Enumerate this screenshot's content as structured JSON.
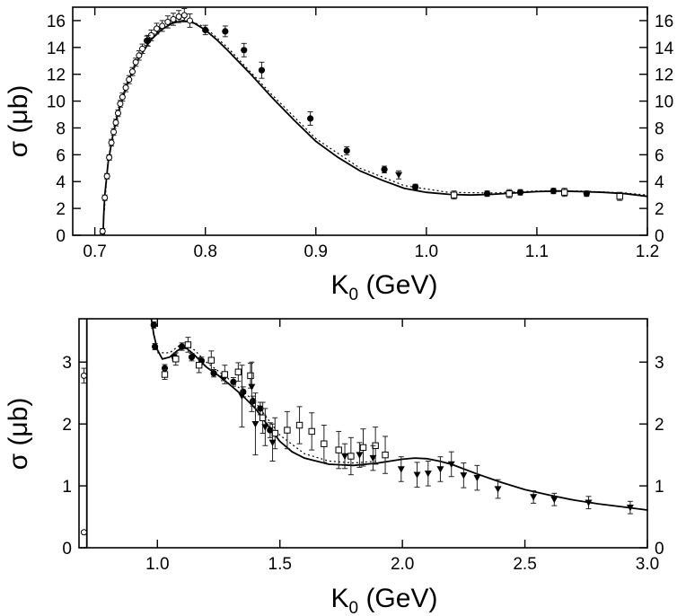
{
  "chart_data": [
    {
      "type": "scatter",
      "panel": "top",
      "xlabel": "K",
      "xlabel_sub": "0",
      "xlabel_unit": " (GeV)",
      "ylabel": "σ (μb)",
      "xlim": [
        0.68,
        1.2
      ],
      "ylim": [
        0,
        17
      ],
      "xticks": [
        0.7,
        0.8,
        0.9,
        1.0,
        1.1,
        1.2
      ],
      "xtick_labels": [
        "0.7",
        "0.8",
        "0.9",
        "1.0",
        "1.1",
        "1.2"
      ],
      "yticks": [
        0,
        2,
        4,
        6,
        8,
        10,
        12,
        14,
        16
      ],
      "ytick_labels": [
        "0",
        "2",
        "4",
        "6",
        "8",
        "10",
        "12",
        "14",
        "16"
      ],
      "series": [
        {
          "name": "open circles",
          "marker": "open-circle",
          "points": [
            [
              0.707,
              0.3,
              0.2
            ],
            [
              0.709,
              2.8,
              0.2
            ],
            [
              0.711,
              4.4,
              0.2
            ],
            [
              0.713,
              5.8,
              0.2
            ],
            [
              0.715,
              6.9,
              0.25
            ],
            [
              0.717,
              7.7,
              0.25
            ],
            [
              0.719,
              8.4,
              0.25
            ],
            [
              0.721,
              9.1,
              0.25
            ],
            [
              0.723,
              9.8,
              0.25
            ],
            [
              0.725,
              10.3,
              0.3
            ],
            [
              0.728,
              11.0,
              0.3
            ],
            [
              0.731,
              11.6,
              0.3
            ],
            [
              0.734,
              12.2,
              0.3
            ],
            [
              0.737,
              12.9,
              0.3
            ],
            [
              0.74,
              13.4,
              0.35
            ],
            [
              0.743,
              13.9,
              0.35
            ],
            [
              0.747,
              14.5,
              0.35
            ],
            [
              0.751,
              14.9,
              0.4
            ],
            [
              0.756,
              15.4,
              0.4
            ],
            [
              0.761,
              15.6,
              0.4
            ],
            [
              0.766,
              15.9,
              0.45
            ],
            [
              0.771,
              16.1,
              0.45
            ],
            [
              0.776,
              16.3,
              0.45
            ],
            [
              0.781,
              16.4,
              0.5
            ],
            [
              0.786,
              16.0,
              0.5
            ]
          ]
        },
        {
          "name": "filled circles",
          "marker": "filled-circle",
          "points": [
            [
              0.748,
              14.5,
              0.4
            ],
            [
              0.8,
              15.3,
              0.35
            ],
            [
              0.818,
              15.2,
              0.4
            ],
            [
              0.835,
              13.8,
              0.5
            ],
            [
              0.851,
              12.3,
              0.6
            ],
            [
              0.895,
              8.7,
              0.5
            ],
            [
              0.928,
              6.3,
              0.3
            ],
            [
              0.962,
              4.9,
              0.25
            ],
            [
              0.99,
              3.6,
              0.2
            ],
            [
              1.055,
              3.1,
              0.2
            ],
            [
              1.085,
              3.2,
              0.2
            ],
            [
              1.115,
              3.3,
              0.2
            ],
            [
              1.145,
              3.1,
              0.2
            ]
          ]
        },
        {
          "name": "open squares",
          "marker": "open-square",
          "points": [
            [
              1.025,
              3.0,
              0.3
            ],
            [
              1.075,
              3.1,
              0.3
            ],
            [
              1.125,
              3.2,
              0.3
            ],
            [
              1.175,
              2.9,
              0.3
            ]
          ]
        },
        {
          "name": "filled triangles",
          "marker": "filled-triangle",
          "points": [
            [
              0.975,
              4.5,
              0.3
            ]
          ]
        }
      ],
      "curves": [
        {
          "name": "solid",
          "style": "solid",
          "x": [
            0.7075,
            0.708,
            0.709,
            0.712,
            0.716,
            0.72,
            0.725,
            0.73,
            0.735,
            0.74,
            0.75,
            0.76,
            0.77,
            0.78,
            0.79,
            0.8,
            0.81,
            0.82,
            0.84,
            0.86,
            0.88,
            0.9,
            0.92,
            0.94,
            0.96,
            0.98,
            1.0,
            1.02,
            1.04,
            1.06,
            1.08,
            1.1,
            1.12,
            1.14,
            1.16,
            1.18,
            1.2
          ],
          "y": [
            0,
            1.5,
            3.0,
            5.4,
            7.3,
            8.8,
            10.2,
            11.4,
            12.4,
            13.2,
            14.5,
            15.3,
            15.8,
            16.0,
            15.8,
            15.3,
            14.6,
            13.8,
            12.1,
            10.3,
            8.6,
            7.0,
            5.8,
            4.8,
            4.1,
            3.5,
            3.2,
            3.05,
            3.0,
            3.05,
            3.15,
            3.25,
            3.3,
            3.25,
            3.2,
            3.1,
            2.9
          ]
        },
        {
          "name": "dotted",
          "style": "dotted",
          "x": [
            0.708,
            0.712,
            0.72,
            0.73,
            0.74,
            0.76,
            0.78,
            0.8,
            0.82,
            0.86,
            0.9,
            0.94,
            0.98,
            1.02,
            1.06,
            1.1,
            1.14,
            1.18,
            1.2
          ],
          "y": [
            1.2,
            5.6,
            9.0,
            11.6,
            13.4,
            15.5,
            16.2,
            15.5,
            14.0,
            10.5,
            7.2,
            5.0,
            3.7,
            3.2,
            3.15,
            3.3,
            3.3,
            3.15,
            3.0
          ]
        }
      ]
    },
    {
      "type": "scatter",
      "panel": "bottom",
      "xlabel": "K",
      "xlabel_sub": "0",
      "xlabel_unit": " (GeV)",
      "ylabel": "σ (μb)",
      "xlim": [
        0.68,
        3.0
      ],
      "ylim": [
        0,
        3.7
      ],
      "xticks": [
        1.0,
        1.5,
        2.0,
        2.5,
        3.0
      ],
      "xtick_labels": [
        "1.0",
        "1.5",
        "2.0",
        "2.5",
        "3.0"
      ],
      "yticks": [
        0,
        1,
        2,
        3
      ],
      "ytick_labels": [
        "0",
        "1",
        "2",
        "3"
      ],
      "series": [
        {
          "name": "open circles",
          "marker": "open-circle",
          "points": [
            [
              0.7,
              0.25,
              0.02
            ],
            [
              0.7,
              2.78,
              0.12
            ]
          ]
        },
        {
          "name": "filled circles",
          "marker": "filled-circle",
          "points": [
            [
              0.985,
              3.6,
              0.05
            ],
            [
              0.99,
              3.25,
              0.05
            ],
            [
              1.03,
              2.9,
              0.06
            ],
            [
              1.07,
              3.08,
              0.05
            ],
            [
              1.1,
              3.25,
              0.06
            ],
            [
              1.14,
              3.08,
              0.06
            ],
            [
              1.18,
              3.02,
              0.06
            ],
            [
              1.23,
              2.82,
              0.06
            ],
            [
              1.27,
              2.76,
              0.06
            ],
            [
              1.31,
              2.68,
              0.07
            ],
            [
              1.35,
              2.52,
              0.08
            ],
            [
              1.39,
              2.37,
              0.08
            ],
            [
              1.42,
              2.25,
              0.1
            ],
            [
              1.46,
              1.9,
              0.12
            ]
          ]
        },
        {
          "name": "open squares",
          "marker": "open-square",
          "points": [
            [
              1.03,
              2.8,
              0.08
            ],
            [
              1.075,
              3.05,
              0.1
            ],
            [
              1.125,
              3.28,
              0.12
            ],
            [
              1.17,
              2.95,
              0.12
            ],
            [
              1.22,
              3.03,
              0.15
            ],
            [
              1.275,
              2.8,
              0.15
            ],
            [
              1.33,
              2.84,
              0.15
            ],
            [
              1.38,
              2.78,
              0.2
            ],
            [
              1.43,
              2.1,
              0.25
            ],
            [
              1.48,
              1.85,
              0.25
            ],
            [
              1.53,
              1.9,
              0.3
            ],
            [
              1.58,
              1.98,
              0.3
            ],
            [
              1.63,
              1.88,
              0.3
            ],
            [
              1.68,
              1.68,
              0.3
            ],
            [
              1.74,
              1.58,
              0.3
            ],
            [
              1.79,
              1.48,
              0.3
            ],
            [
              1.84,
              1.62,
              0.3
            ],
            [
              1.89,
              1.65,
              0.3
            ],
            [
              1.93,
              1.5,
              0.3
            ]
          ]
        },
        {
          "name": "filled triangles",
          "marker": "filled-triangle",
          "points": [
            [
              1.345,
              2.45,
              0.5
            ],
            [
              1.385,
              2.6,
              0.4
            ],
            [
              1.4,
              2.0,
              0.5
            ],
            [
              1.44,
              1.95,
              0.3
            ],
            [
              1.47,
              1.7,
              0.3
            ],
            [
              1.765,
              1.48,
              0.2
            ],
            [
              1.825,
              1.5,
              0.2
            ],
            [
              1.88,
              1.45,
              0.2
            ],
            [
              1.995,
              1.27,
              0.2
            ],
            [
              2.06,
              1.18,
              0.2
            ],
            [
              2.105,
              1.2,
              0.2
            ],
            [
              2.155,
              1.27,
              0.2
            ],
            [
              2.2,
              1.35,
              0.2
            ],
            [
              2.25,
              1.17,
              0.2
            ],
            [
              2.305,
              1.13,
              0.2
            ],
            [
              2.39,
              0.95,
              0.15
            ],
            [
              2.535,
              0.82,
              0.1
            ],
            [
              2.62,
              0.78,
              0.1
            ],
            [
              2.76,
              0.73,
              0.1
            ],
            [
              2.93,
              0.65,
              0.1
            ]
          ]
        }
      ],
      "curves": [
        {
          "name": "solid threshold",
          "style": "solid",
          "x": [
            0.712,
            0.712
          ],
          "y": [
            0,
            3.7
          ]
        },
        {
          "name": "solid",
          "style": "solid",
          "x": [
            0.975,
            0.985,
            1.0,
            1.02,
            1.05,
            1.08,
            1.1,
            1.12,
            1.15,
            1.2,
            1.25,
            1.3,
            1.35,
            1.4,
            1.45,
            1.5,
            1.55,
            1.6,
            1.7,
            1.8,
            1.9,
            2.0,
            2.05,
            2.1,
            2.15,
            2.2,
            2.3,
            2.4,
            2.5,
            2.6,
            2.7,
            2.8,
            2.9,
            3.0
          ],
          "y": [
            3.7,
            3.45,
            3.2,
            3.05,
            3.08,
            3.18,
            3.23,
            3.22,
            3.12,
            2.92,
            2.78,
            2.62,
            2.45,
            2.25,
            1.98,
            1.72,
            1.55,
            1.45,
            1.35,
            1.33,
            1.37,
            1.43,
            1.45,
            1.44,
            1.4,
            1.35,
            1.2,
            1.06,
            0.94,
            0.85,
            0.77,
            0.71,
            0.66,
            0.61
          ]
        },
        {
          "name": "dotted",
          "style": "dotted",
          "x": [
            1.0,
            1.05,
            1.1,
            1.15,
            1.2,
            1.3,
            1.4,
            1.5,
            1.6,
            1.7,
            1.8,
            1.9
          ],
          "y": [
            3.15,
            3.15,
            3.3,
            3.2,
            3.0,
            2.7,
            2.35,
            1.82,
            1.52,
            1.4,
            1.37,
            1.4
          ]
        }
      ]
    }
  ]
}
